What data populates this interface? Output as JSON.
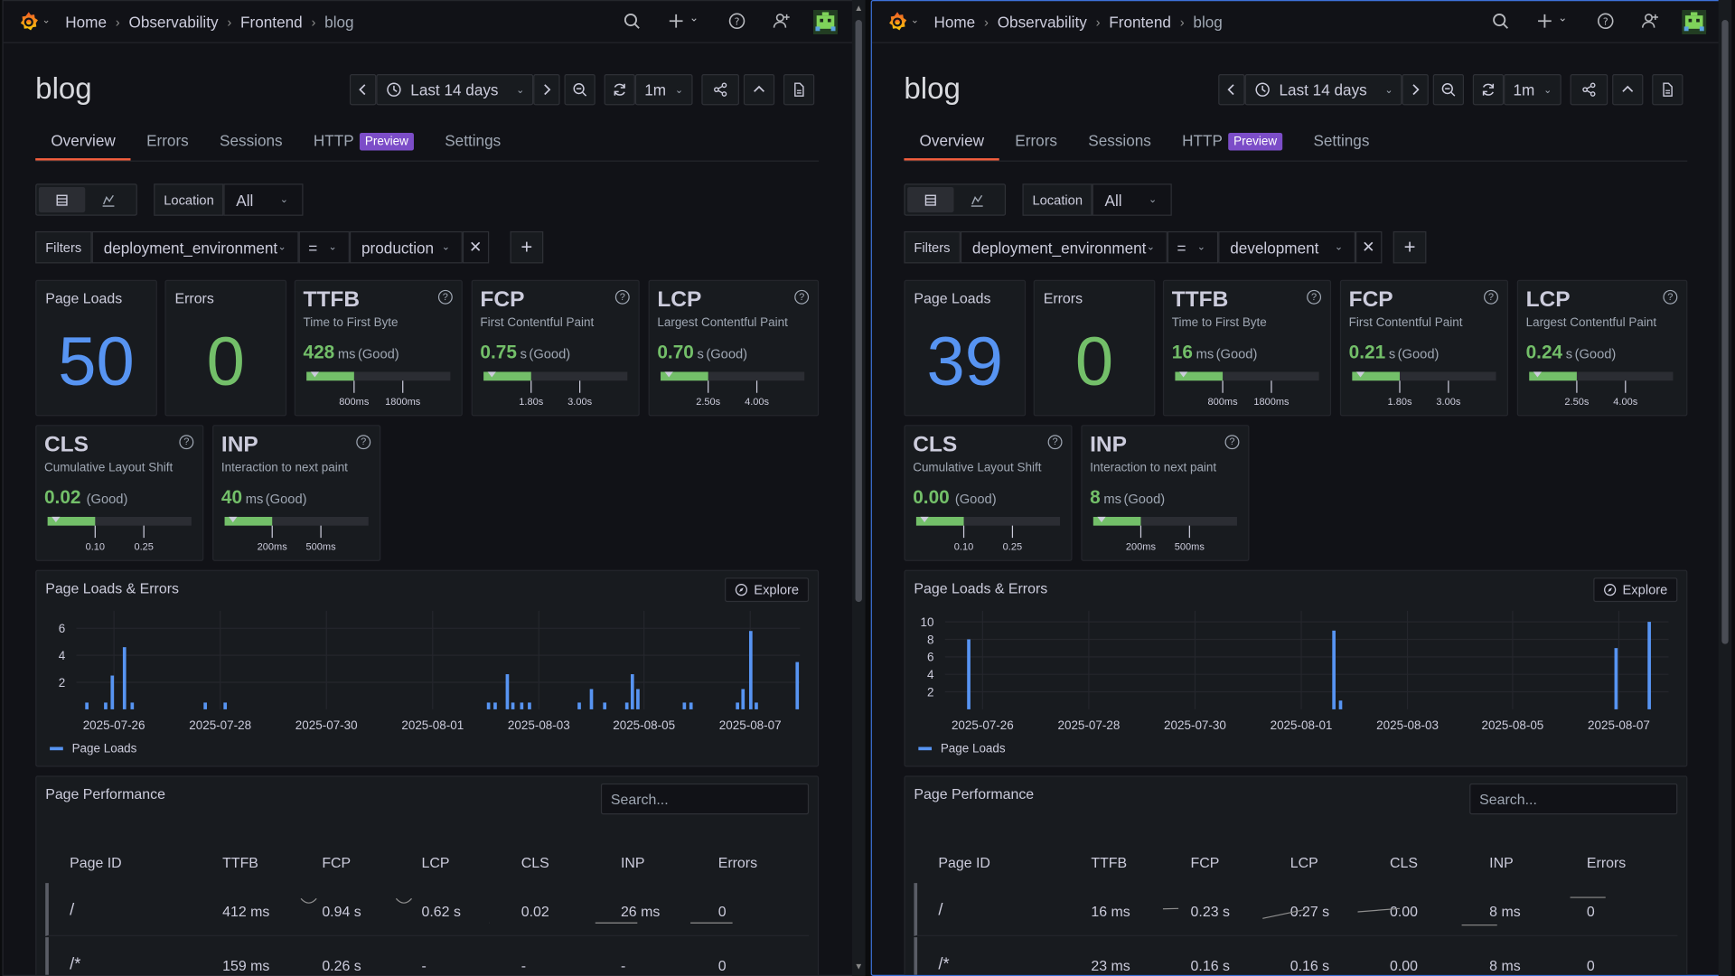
{
  "breadcrumb": [
    "Home",
    "Observability",
    "Frontend",
    "blog"
  ],
  "page_title": "blog",
  "time_range": "Last 14 days",
  "refresh_interval": "1m",
  "tabs": [
    {
      "label": "Overview",
      "active": true
    },
    {
      "label": "Errors"
    },
    {
      "label": "Sessions"
    },
    {
      "label": "HTTP",
      "badge": "Preview"
    },
    {
      "label": "Settings"
    }
  ],
  "location": {
    "label": "Location",
    "value": "All"
  },
  "filters_label": "Filters",
  "panes": [
    {
      "filter": {
        "key": "deployment_environment",
        "operator": "=",
        "value": "production"
      },
      "page_loads": {
        "label": "Page Loads",
        "value": "50"
      },
      "errors": {
        "label": "Errors",
        "value": "0"
      },
      "vitals": [
        {
          "name": "TTFB",
          "desc": "Time to First Byte",
          "value": "428",
          "unit": "ms",
          "rating": "(Good)",
          "t1": "800ms",
          "t2": "1800ms",
          "fill": 0.33
        },
        {
          "name": "FCP",
          "desc": "First Contentful Paint",
          "value": "0.75",
          "unit": "s",
          "rating": "(Good)",
          "t1": "1.80s",
          "t2": "3.00s",
          "fill": 0.33
        },
        {
          "name": "LCP",
          "desc": "Largest Contentful Paint",
          "value": "0.70",
          "unit": "s",
          "rating": "(Good)",
          "t1": "2.50s",
          "t2": "4.00s",
          "fill": 0.33
        },
        {
          "name": "CLS",
          "desc": "Cumulative Layout Shift",
          "value": "0.02",
          "unit": "",
          "rating": "(Good)",
          "t1": "0.10",
          "t2": "0.25",
          "fill": 0.33
        },
        {
          "name": "INP",
          "desc": "Interaction to next paint",
          "value": "40",
          "unit": "ms",
          "rating": "(Good)",
          "t1": "200ms",
          "t2": "500ms",
          "fill": 0.33
        }
      ],
      "chart_title": "Page Loads & Errors",
      "explore_label": "Explore",
      "chart_data": {
        "type": "bar",
        "x_labels": [
          "2025-07-26",
          "2025-07-28",
          "2025-07-30",
          "2025-08-01",
          "2025-08-03",
          "2025-08-05",
          "2025-08-07"
        ],
        "y_ticks": [
          2,
          4,
          6
        ],
        "ylim": [
          0,
          6.8
        ],
        "series": [
          {
            "name": "Page Loads",
            "color": "#5794f2",
            "values": [
              0.5,
              1,
              3.5,
              4.6,
              0.5,
              0.5,
              0.5,
              0.5,
              0.5,
              0.5,
              0.5,
              0.5,
              0.5,
              0.5,
              2.6,
              0.5,
              0.5,
              0.5,
              0.5,
              1.6,
              0.5,
              0.5,
              2.6,
              1.5,
              0.5,
              0.5,
              1.6,
              5.6,
              0.5,
              3.5
            ]
          }
        ]
      },
      "perf_title": "Page Performance",
      "search_placeholder": "Search...",
      "table": {
        "columns": [
          "Page ID",
          "TTFB",
          "FCP",
          "LCP",
          "CLS",
          "INP",
          "Errors"
        ],
        "rows": [
          [
            "/",
            "412 ms",
            "0.94 s",
            "0.62 s",
            "0.02",
            "26 ms",
            "0"
          ],
          [
            "/*",
            "159 ms",
            "0.26 s",
            "-",
            "-",
            "-",
            "0"
          ]
        ]
      }
    },
    {
      "filter": {
        "key": "deployment_environment",
        "operator": "=",
        "value": "development"
      },
      "page_loads": {
        "label": "Page Loads",
        "value": "39"
      },
      "errors": {
        "label": "Errors",
        "value": "0"
      },
      "vitals": [
        {
          "name": "TTFB",
          "desc": "Time to First Byte",
          "value": "16",
          "unit": "ms",
          "rating": "(Good)",
          "t1": "800ms",
          "t2": "1800ms",
          "fill": 0.33
        },
        {
          "name": "FCP",
          "desc": "First Contentful Paint",
          "value": "0.21",
          "unit": "s",
          "rating": "(Good)",
          "t1": "1.80s",
          "t2": "3.00s",
          "fill": 0.33
        },
        {
          "name": "LCP",
          "desc": "Largest Contentful Paint",
          "value": "0.24",
          "unit": "s",
          "rating": "(Good)",
          "t1": "2.50s",
          "t2": "4.00s",
          "fill": 0.33
        },
        {
          "name": "CLS",
          "desc": "Cumulative Layout Shift",
          "value": "0.00",
          "unit": "",
          "rating": "(Good)",
          "t1": "0.10",
          "t2": "0.25",
          "fill": 0.33
        },
        {
          "name": "INP",
          "desc": "Interaction to next paint",
          "value": "8",
          "unit": "ms",
          "rating": "(Good)",
          "t1": "200ms",
          "t2": "500ms",
          "fill": 0.33
        }
      ],
      "chart_title": "Page Loads & Errors",
      "explore_label": "Explore",
      "chart_data": {
        "type": "bar",
        "x_labels": [
          "2025-07-26",
          "2025-07-28",
          "2025-07-30",
          "2025-08-01",
          "2025-08-03",
          "2025-08-05",
          "2025-08-07"
        ],
        "y_ticks": [
          2,
          4,
          6,
          8,
          10
        ],
        "ylim": [
          0,
          10.5
        ],
        "series": [
          {
            "name": "Page Loads",
            "color": "#5794f2",
            "values": [
              8,
              9,
              1,
              7,
              10
            ]
          }
        ]
      },
      "perf_title": "Page Performance",
      "search_placeholder": "Search...",
      "table": {
        "columns": [
          "Page ID",
          "TTFB",
          "FCP",
          "LCP",
          "CLS",
          "INP",
          "Errors"
        ],
        "rows": [
          [
            "/",
            "16 ms",
            "0.23 s",
            "0.27 s",
            "0.00",
            "8 ms",
            "0"
          ],
          [
            "/*",
            "23 ms",
            "0.16 s",
            "0.16 s",
            "0.00",
            "8 ms",
            "0"
          ]
        ]
      }
    }
  ]
}
